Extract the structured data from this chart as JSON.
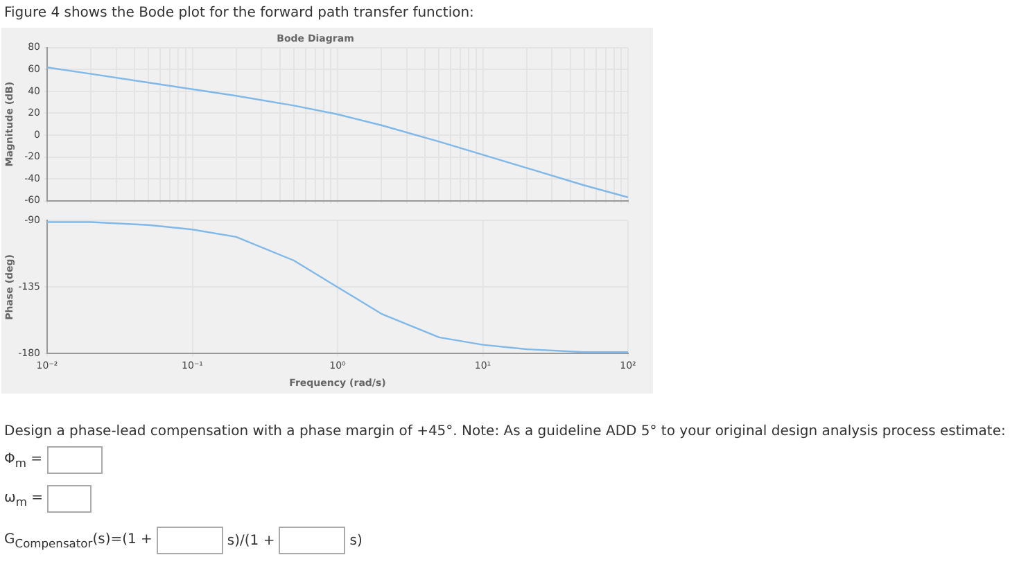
{
  "chart_data": [
    {
      "type": "line",
      "title": "Bode Diagram",
      "ylabel": "Magnitude (dB)",
      "annotations": [
        "Figure 4 shows the Bode plot for the forward path transfer function:"
      ],
      "log": "x",
      "grid": true,
      "legend": false,
      "tick_labels": "y",
      "marker": "none",
      "line_style": "solid",
      "x": [
        0.01,
        0.02,
        0.05,
        0.1,
        0.2,
        0.5,
        1,
        2,
        5,
        10,
        20,
        50,
        100
      ],
      "series": [
        {
          "color": "#80b8e8",
          "values": [
            62,
            56,
            48,
            42,
            36,
            27,
            19,
            9,
            -6,
            -18,
            -30,
            -46,
            -57
          ]
        }
      ],
      "xlim": [
        0.01,
        100
      ],
      "ylim": [
        -60,
        80
      ],
      "yticks": [
        -60,
        -40,
        -20,
        0,
        20,
        40,
        60,
        80
      ]
    },
    {
      "type": "line",
      "xlabel": "Frequency (rad/s)",
      "ylabel": "Phase (deg)",
      "annotations": [
        "Design a phase-lead compensation with a phase margin of +45°. Note: As a guideline ADD 5° to your original design analysis process estimate:",
        "Φ$_{m}$ =",
        "ω$_{m}$ =",
        "G$_{Compensator}$(s)=(1 +",
        "s)/(1 +",
        "s)"
      ],
      "log": "x",
      "grid": true,
      "legend": false,
      "marker": "none",
      "line_style": "solid",
      "x": [
        0.01,
        0.02,
        0.05,
        0.1,
        0.2,
        0.5,
        1,
        2,
        5,
        10,
        20,
        50,
        100
      ],
      "series": [
        {
          "color": "#80b8e8",
          "values": [
            -91,
            -91,
            -93,
            -96,
            -101,
            -117,
            -135,
            -153,
            -169,
            -174,
            -177,
            -179,
            -179
          ]
        }
      ],
      "xlim": [
        0.01,
        100
      ],
      "xticks": [
        {
          "value": 0.01,
          "label": "10⁻²"
        },
        {
          "value": 0.1,
          "label": "10⁻¹"
        },
        {
          "value": 1,
          "label": "10⁰"
        },
        {
          "value": 10,
          "label": "10¹"
        },
        {
          "value": 100,
          "label": "10²"
        }
      ],
      "ylim": [
        -180,
        -90
      ],
      "yticks": [
        -180,
        -135,
        -90
      ]
    }
  ]
}
